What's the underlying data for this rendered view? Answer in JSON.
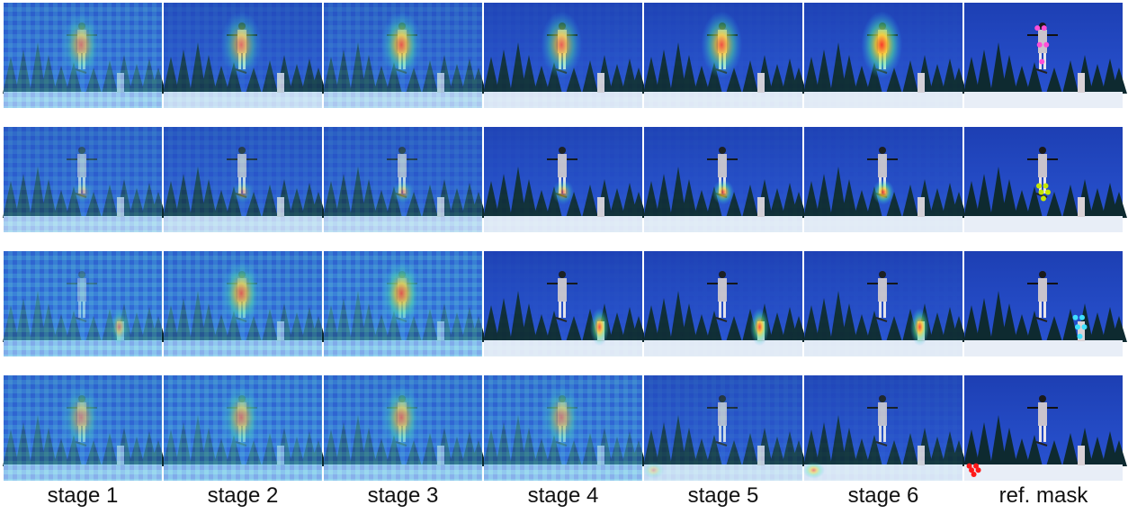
{
  "figure": {
    "column_labels": [
      "stage 1",
      "stage 2",
      "stage 3",
      "stage 4",
      "stage 5",
      "stage 6",
      "ref. mask"
    ],
    "rows": [
      {
        "heat": [
          {
            "intensity": 0.55,
            "focus": "skier-main",
            "background": 0.5
          },
          {
            "intensity": 0.6,
            "focus": "skier-main",
            "background": 0.2
          },
          {
            "intensity": 0.75,
            "focus": "skier-main",
            "background": 0.35
          },
          {
            "intensity": 0.7,
            "focus": "skier-main",
            "background": 0.08
          },
          {
            "intensity": 0.8,
            "focus": "skier-main",
            "background": 0.05
          },
          {
            "intensity": 0.95,
            "focus": "skier-main",
            "background": 0.04
          }
        ],
        "mask": {
          "color": "#ff4fd8",
          "target": "skier-main"
        }
      },
      {
        "heat": [
          {
            "intensity": 0.3,
            "focus": "skis",
            "background": 0.4
          },
          {
            "intensity": 0.35,
            "focus": "skis",
            "background": 0.25
          },
          {
            "intensity": 0.45,
            "focus": "skis",
            "background": 0.3
          },
          {
            "intensity": 0.55,
            "focus": "skis",
            "background": 0.06
          },
          {
            "intensity": 0.75,
            "focus": "skis",
            "background": 0.05
          },
          {
            "intensity": 0.85,
            "focus": "skis",
            "background": 0.04
          }
        ],
        "mask": {
          "color": "#c6e600",
          "target": "skis"
        }
      },
      {
        "heat": [
          {
            "intensity": 0.5,
            "focus": "skier-ground",
            "background": 0.6
          },
          {
            "intensity": 0.7,
            "focus": "skier-main",
            "background": 0.55
          },
          {
            "intensity": 0.75,
            "focus": "skier-main",
            "background": 0.6
          },
          {
            "intensity": 0.8,
            "focus": "skier-ground",
            "background": 0.05
          },
          {
            "intensity": 0.85,
            "focus": "skier-ground",
            "background": 0.04
          },
          {
            "intensity": 0.85,
            "focus": "skier-ground",
            "background": 0.04
          }
        ],
        "mask": {
          "color": "#3fe0ff",
          "target": "skier-ground"
        }
      },
      {
        "heat": [
          {
            "intensity": 0.45,
            "focus": "skier-main",
            "background": 0.55
          },
          {
            "intensity": 0.55,
            "focus": "skier-main",
            "background": 0.6
          },
          {
            "intensity": 0.6,
            "focus": "skier-main",
            "background": 0.55
          },
          {
            "intensity": 0.5,
            "focus": "skier-main",
            "background": 0.55
          },
          {
            "intensity": 0.3,
            "focus": "ground-left",
            "background": 0.2
          },
          {
            "intensity": 0.55,
            "focus": "ground-left",
            "background": 0.1
          }
        ],
        "mask": {
          "color": "#ff1a1a",
          "target": "ground-left"
        }
      }
    ]
  }
}
